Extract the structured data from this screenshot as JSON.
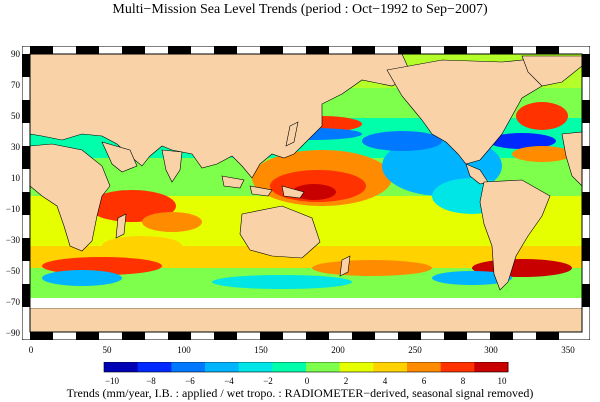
{
  "title": "Multi−Mission Sea Level Trends (period : Oct−1992 to Sep−2007)",
  "caption": "Trends (mm/year, I.B. : applied / wet tropo. : RADIOMETER−derived, seasonal signal removed)",
  "lat_ticks": [
    "90",
    "70",
    "50",
    "30",
    "10",
    "−10",
    "−30",
    "−50",
    "−70",
    "−90"
  ],
  "lon_ticks": [
    "0",
    "50",
    "100",
    "150",
    "200",
    "250",
    "300",
    "350"
  ],
  "colorbar": {
    "ticks": [
      "−10",
      "−8",
      "−6",
      "−4",
      "−2",
      "0",
      "2",
      "4",
      "6",
      "8",
      "10"
    ],
    "range": [
      -10,
      10
    ],
    "colors": [
      "#0000b4",
      "#0028ff",
      "#0078ff",
      "#00b4ff",
      "#00e6e6",
      "#00ffaa",
      "#7dff4b",
      "#e6ff00",
      "#ffd200",
      "#ff8c00",
      "#ff3200",
      "#c80000"
    ]
  },
  "map": {
    "lon_range": [
      0,
      360
    ],
    "lat_range": [
      -90,
      90
    ],
    "land_color": "#f9d2a8",
    "ice_color": "#ffffff",
    "ocean_base_color": "#7dff4b"
  }
}
